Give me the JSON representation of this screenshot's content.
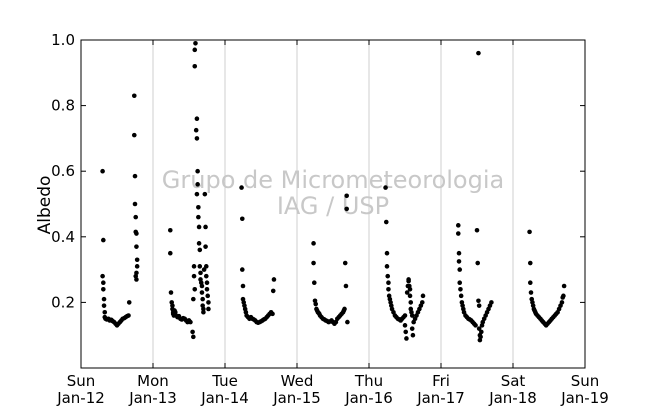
{
  "chart_data": {
    "type": "scatter",
    "title": "",
    "xlabel": "",
    "ylabel": "Albedo",
    "ylim": [
      0.0,
      1.0
    ],
    "xlim": [
      "2014-01-12",
      "2014-01-19"
    ],
    "y_ticks": [
      0.2,
      0.4,
      0.6,
      0.8,
      1.0
    ],
    "y_tick_labels": [
      "0.2",
      "0.4",
      "0.6",
      "0.8",
      "1.0"
    ],
    "x_ticks": [
      {
        "day": "Sun",
        "date": "Jan-12"
      },
      {
        "day": "Mon",
        "date": "Jan-13"
      },
      {
        "day": "Tue",
        "date": "Jan-14"
      },
      {
        "day": "Wed",
        "date": "Jan-15"
      },
      {
        "day": "Thu",
        "date": "Jan-16"
      },
      {
        "day": "Fri",
        "date": "Jan-17"
      },
      {
        "day": "Sat",
        "date": "Jan-18"
      },
      {
        "day": "Sun",
        "date": "Jan-19"
      }
    ],
    "vertical_grid": true,
    "marker_color": "#000000",
    "watermark": [
      "Grupo de Micrometeorologia",
      "IAG / USP"
    ],
    "points_x_unit": "days since 2014-01-12 00:00",
    "points": [
      [
        0.3,
        0.6
      ],
      [
        0.31,
        0.39
      ],
      [
        0.3,
        0.28
      ],
      [
        0.31,
        0.26
      ],
      [
        0.31,
        0.24
      ],
      [
        0.32,
        0.21
      ],
      [
        0.32,
        0.19
      ],
      [
        0.33,
        0.17
      ],
      [
        0.33,
        0.155
      ],
      [
        0.34,
        0.15
      ],
      [
        0.36,
        0.148
      ],
      [
        0.38,
        0.15
      ],
      [
        0.4,
        0.145
      ],
      [
        0.42,
        0.147
      ],
      [
        0.44,
        0.143
      ],
      [
        0.46,
        0.14
      ],
      [
        0.48,
        0.135
      ],
      [
        0.5,
        0.13
      ],
      [
        0.52,
        0.135
      ],
      [
        0.54,
        0.14
      ],
      [
        0.56,
        0.145
      ],
      [
        0.58,
        0.15
      ],
      [
        0.6,
        0.152
      ],
      [
        0.62,
        0.155
      ],
      [
        0.64,
        0.158
      ],
      [
        0.66,
        0.16
      ],
      [
        0.67,
        0.2
      ],
      [
        0.74,
        0.83
      ],
      [
        0.74,
        0.71
      ],
      [
        0.75,
        0.585
      ],
      [
        0.75,
        0.5
      ],
      [
        0.76,
        0.46
      ],
      [
        0.76,
        0.415
      ],
      [
        0.77,
        0.41
      ],
      [
        0.77,
        0.37
      ],
      [
        0.78,
        0.33
      ],
      [
        0.78,
        0.31
      ],
      [
        0.76,
        0.28
      ],
      [
        0.77,
        0.27
      ],
      [
        0.77,
        0.29
      ],
      [
        1.24,
        0.42
      ],
      [
        1.24,
        0.35
      ],
      [
        1.25,
        0.23
      ],
      [
        1.26,
        0.2
      ],
      [
        1.27,
        0.19
      ],
      [
        1.27,
        0.18
      ],
      [
        1.28,
        0.17
      ],
      [
        1.28,
        0.165
      ],
      [
        1.29,
        0.16
      ],
      [
        1.3,
        0.175
      ],
      [
        1.31,
        0.17
      ],
      [
        1.32,
        0.16
      ],
      [
        1.34,
        0.155
      ],
      [
        1.36,
        0.158
      ],
      [
        1.38,
        0.15
      ],
      [
        1.4,
        0.148
      ],
      [
        1.42,
        0.152
      ],
      [
        1.44,
        0.15
      ],
      [
        1.46,
        0.145
      ],
      [
        1.48,
        0.14
      ],
      [
        1.5,
        0.145
      ],
      [
        1.52,
        0.14
      ],
      [
        1.55,
        0.11
      ],
      [
        1.56,
        0.095
      ],
      [
        1.56,
        0.21
      ],
      [
        1.57,
        0.28
      ],
      [
        1.57,
        0.31
      ],
      [
        1.58,
        0.24
      ],
      [
        1.59,
        0.99
      ],
      [
        1.58,
        0.97
      ],
      [
        1.58,
        0.92
      ],
      [
        1.61,
        0.76
      ],
      [
        1.6,
        0.725
      ],
      [
        1.61,
        0.7
      ],
      [
        1.62,
        0.6
      ],
      [
        1.62,
        0.56
      ],
      [
        1.61,
        0.53
      ],
      [
        1.63,
        0.49
      ],
      [
        1.63,
        0.46
      ],
      [
        1.64,
        0.43
      ],
      [
        1.64,
        0.38
      ],
      [
        1.65,
        0.36
      ],
      [
        1.65,
        0.31
      ],
      [
        1.66,
        0.29
      ],
      [
        1.66,
        0.27
      ],
      [
        1.67,
        0.26
      ],
      [
        1.68,
        0.25
      ],
      [
        1.68,
        0.23
      ],
      [
        1.69,
        0.21
      ],
      [
        1.69,
        0.19
      ],
      [
        1.7,
        0.18
      ],
      [
        1.7,
        0.17
      ],
      [
        1.71,
        0.3
      ],
      [
        1.72,
        0.53
      ],
      [
        1.73,
        0.43
      ],
      [
        1.73,
        0.37
      ],
      [
        1.74,
        0.31
      ],
      [
        1.74,
        0.28
      ],
      [
        1.75,
        0.26
      ],
      [
        1.75,
        0.24
      ],
      [
        1.76,
        0.22
      ],
      [
        1.77,
        0.2
      ],
      [
        1.77,
        0.18
      ],
      [
        2.23,
        0.55
      ],
      [
        2.24,
        0.455
      ],
      [
        2.24,
        0.3
      ],
      [
        2.25,
        0.25
      ],
      [
        2.25,
        0.21
      ],
      [
        2.26,
        0.2
      ],
      [
        2.27,
        0.19
      ],
      [
        2.28,
        0.18
      ],
      [
        2.29,
        0.17
      ],
      [
        2.3,
        0.16
      ],
      [
        2.32,
        0.155
      ],
      [
        2.34,
        0.15
      ],
      [
        2.36,
        0.155
      ],
      [
        2.38,
        0.15
      ],
      [
        2.4,
        0.148
      ],
      [
        2.42,
        0.145
      ],
      [
        2.44,
        0.14
      ],
      [
        2.46,
        0.138
      ],
      [
        2.48,
        0.14
      ],
      [
        2.5,
        0.142
      ],
      [
        2.52,
        0.145
      ],
      [
        2.54,
        0.148
      ],
      [
        2.56,
        0.15
      ],
      [
        2.58,
        0.155
      ],
      [
        2.6,
        0.16
      ],
      [
        2.62,
        0.165
      ],
      [
        2.64,
        0.17
      ],
      [
        2.66,
        0.165
      ],
      [
        2.67,
        0.235
      ],
      [
        2.68,
        0.27
      ],
      [
        3.23,
        0.38
      ],
      [
        3.23,
        0.32
      ],
      [
        3.24,
        0.26
      ],
      [
        3.25,
        0.205
      ],
      [
        3.26,
        0.195
      ],
      [
        3.27,
        0.18
      ],
      [
        3.28,
        0.175
      ],
      [
        3.29,
        0.17
      ],
      [
        3.3,
        0.168
      ],
      [
        3.31,
        0.165
      ],
      [
        3.32,
        0.16
      ],
      [
        3.34,
        0.155
      ],
      [
        3.36,
        0.15
      ],
      [
        3.38,
        0.148
      ],
      [
        3.4,
        0.145
      ],
      [
        3.42,
        0.143
      ],
      [
        3.44,
        0.14
      ],
      [
        3.46,
        0.142
      ],
      [
        3.48,
        0.145
      ],
      [
        3.5,
        0.14
      ],
      [
        3.52,
        0.135
      ],
      [
        3.54,
        0.14
      ],
      [
        3.56,
        0.15
      ],
      [
        3.58,
        0.155
      ],
      [
        3.6,
        0.16
      ],
      [
        3.62,
        0.165
      ],
      [
        3.64,
        0.17
      ],
      [
        3.65,
        0.175
      ],
      [
        3.66,
        0.18
      ],
      [
        3.67,
        0.32
      ],
      [
        3.68,
        0.25
      ],
      [
        3.69,
        0.485
      ],
      [
        3.69,
        0.525
      ],
      [
        3.7,
        0.14
      ],
      [
        4.23,
        0.55
      ],
      [
        4.24,
        0.445
      ],
      [
        4.25,
        0.35
      ],
      [
        4.25,
        0.31
      ],
      [
        4.26,
        0.28
      ],
      [
        4.27,
        0.26
      ],
      [
        4.27,
        0.24
      ],
      [
        4.28,
        0.22
      ],
      [
        4.29,
        0.21
      ],
      [
        4.3,
        0.2
      ],
      [
        4.31,
        0.19
      ],
      [
        4.32,
        0.18
      ],
      [
        4.34,
        0.17
      ],
      [
        4.36,
        0.16
      ],
      [
        4.38,
        0.155
      ],
      [
        4.4,
        0.15
      ],
      [
        4.42,
        0.148
      ],
      [
        4.44,
        0.145
      ],
      [
        4.46,
        0.15
      ],
      [
        4.48,
        0.155
      ],
      [
        4.5,
        0.16
      ],
      [
        4.5,
        0.13
      ],
      [
        4.51,
        0.11
      ],
      [
        4.52,
        0.09
      ],
      [
        4.53,
        0.23
      ],
      [
        4.54,
        0.25
      ],
      [
        4.55,
        0.27
      ],
      [
        4.55,
        0.265
      ],
      [
        4.56,
        0.25
      ],
      [
        4.57,
        0.24
      ],
      [
        4.57,
        0.22
      ],
      [
        4.58,
        0.2
      ],
      [
        4.58,
        0.18
      ],
      [
        4.59,
        0.17
      ],
      [
        4.6,
        0.16
      ],
      [
        4.6,
        0.12
      ],
      [
        4.61,
        0.1
      ],
      [
        4.62,
        0.14
      ],
      [
        4.64,
        0.15
      ],
      [
        4.66,
        0.16
      ],
      [
        4.68,
        0.17
      ],
      [
        4.7,
        0.18
      ],
      [
        4.72,
        0.19
      ],
      [
        4.74,
        0.2
      ],
      [
        4.75,
        0.22
      ],
      [
        5.24,
        0.435
      ],
      [
        5.24,
        0.41
      ],
      [
        5.25,
        0.35
      ],
      [
        5.25,
        0.325
      ],
      [
        5.26,
        0.3
      ],
      [
        5.26,
        0.26
      ],
      [
        5.27,
        0.24
      ],
      [
        5.28,
        0.22
      ],
      [
        5.29,
        0.2
      ],
      [
        5.3,
        0.19
      ],
      [
        5.31,
        0.18
      ],
      [
        5.32,
        0.17
      ],
      [
        5.34,
        0.16
      ],
      [
        5.36,
        0.155
      ],
      [
        5.38,
        0.15
      ],
      [
        5.4,
        0.148
      ],
      [
        5.42,
        0.145
      ],
      [
        5.44,
        0.14
      ],
      [
        5.46,
        0.135
      ],
      [
        5.48,
        0.13
      ],
      [
        5.5,
        0.42
      ],
      [
        5.51,
        0.32
      ],
      [
        5.52,
        0.96
      ],
      [
        5.52,
        0.205
      ],
      [
        5.53,
        0.19
      ],
      [
        5.53,
        0.12
      ],
      [
        5.54,
        0.1
      ],
      [
        5.54,
        0.085
      ],
      [
        5.55,
        0.095
      ],
      [
        5.56,
        0.11
      ],
      [
        5.57,
        0.13
      ],
      [
        5.58,
        0.14
      ],
      [
        5.6,
        0.15
      ],
      [
        5.62,
        0.16
      ],
      [
        5.64,
        0.17
      ],
      [
        5.66,
        0.18
      ],
      [
        5.68,
        0.19
      ],
      [
        5.7,
        0.2
      ],
      [
        6.23,
        0.415
      ],
      [
        6.24,
        0.32
      ],
      [
        6.24,
        0.26
      ],
      [
        6.25,
        0.23
      ],
      [
        6.26,
        0.21
      ],
      [
        6.27,
        0.2
      ],
      [
        6.28,
        0.19
      ],
      [
        6.29,
        0.18
      ],
      [
        6.3,
        0.175
      ],
      [
        6.31,
        0.17
      ],
      [
        6.32,
        0.165
      ],
      [
        6.34,
        0.16
      ],
      [
        6.36,
        0.155
      ],
      [
        6.38,
        0.15
      ],
      [
        6.4,
        0.145
      ],
      [
        6.42,
        0.14
      ],
      [
        6.44,
        0.135
      ],
      [
        6.46,
        0.13
      ],
      [
        6.48,
        0.135
      ],
      [
        6.5,
        0.14
      ],
      [
        6.52,
        0.145
      ],
      [
        6.54,
        0.15
      ],
      [
        6.56,
        0.155
      ],
      [
        6.58,
        0.16
      ],
      [
        6.6,
        0.165
      ],
      [
        6.62,
        0.17
      ],
      [
        6.64,
        0.18
      ],
      [
        6.66,
        0.19
      ],
      [
        6.68,
        0.2
      ],
      [
        6.69,
        0.215
      ],
      [
        6.7,
        0.22
      ],
      [
        6.71,
        0.25
      ]
    ]
  }
}
